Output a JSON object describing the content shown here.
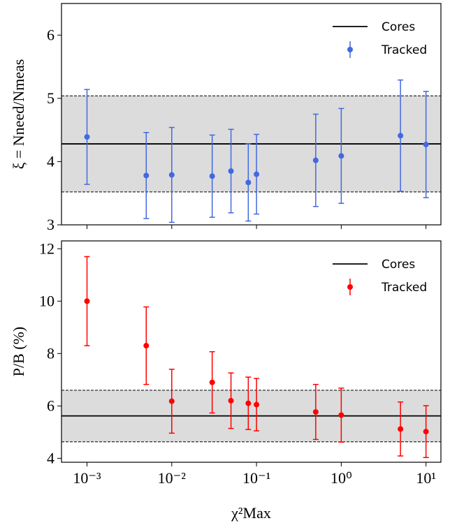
{
  "chart_data": [
    {
      "type": "scatter",
      "ylabel": "ξ = Nneed/Nmeas",
      "x": [
        0.001,
        0.005,
        0.01,
        0.03,
        0.05,
        0.08,
        0.1,
        0.5,
        1,
        5,
        10
      ],
      "xlim": [
        0.0005,
        15
      ],
      "log_x": true,
      "xticks": [
        0.001,
        0.01,
        0.1,
        1,
        10
      ],
      "ylim": [
        3,
        6.5
      ],
      "yticks": [
        3,
        4,
        5,
        6
      ],
      "reference": {
        "name": "Cores",
        "value": 4.28,
        "band": [
          3.52,
          5.04
        ],
        "color": "#000000",
        "band_color": "#dcdcdc"
      },
      "series": [
        {
          "name": "Tracked",
          "color": "#4169e1",
          "values": [
            4.39,
            3.78,
            3.79,
            3.77,
            3.85,
            3.67,
            3.8,
            4.02,
            4.09,
            4.41,
            4.27
          ],
          "errors": [
            0.75,
            0.68,
            0.75,
            0.65,
            0.66,
            0.61,
            0.63,
            0.73,
            0.75,
            0.88,
            0.84
          ]
        }
      ],
      "legend": "upper right"
    },
    {
      "type": "scatter",
      "ylabel": "P/B (%)",
      "xlabel": "χ²Max",
      "x": [
        0.001,
        0.005,
        0.01,
        0.03,
        0.05,
        0.08,
        0.1,
        0.5,
        1,
        5,
        10
      ],
      "xlim": [
        0.0005,
        15
      ],
      "log_x": true,
      "xticks": [
        {
          "value": 0.001,
          "label": "10⁻³"
        },
        {
          "value": 0.01,
          "label": "10⁻²"
        },
        {
          "value": 0.1,
          "label": "10⁻¹"
        },
        {
          "value": 1,
          "label": "10⁰"
        },
        {
          "value": 10,
          "label": "10¹"
        }
      ],
      "ylim": [
        3.85,
        12.3
      ],
      "yticks": [
        4,
        6,
        8,
        10,
        12
      ],
      "reference": {
        "name": "Cores",
        "value": 5.62,
        "band": [
          4.63,
          6.6
        ],
        "color": "#000000",
        "band_color": "#dcdcdc"
      },
      "series": [
        {
          "name": "Tracked",
          "color": "#ff0000",
          "values": [
            10.0,
            8.3,
            6.18,
            6.9,
            6.2,
            6.1,
            6.05,
            5.77,
            5.65,
            5.12,
            5.02
          ],
          "errors": [
            1.7,
            1.48,
            1.22,
            1.17,
            1.06,
            1.0,
            1.0,
            1.05,
            1.03,
            1.03,
            0.99
          ]
        }
      ],
      "legend": "upper right"
    }
  ]
}
